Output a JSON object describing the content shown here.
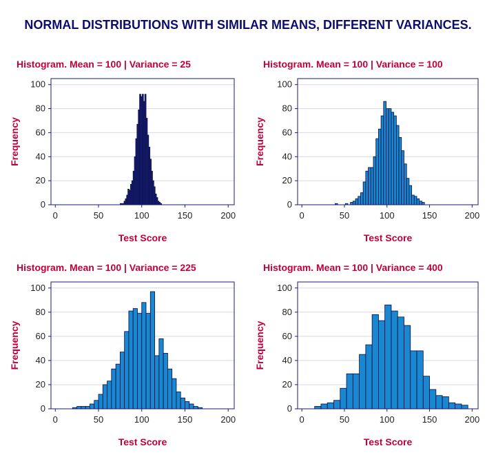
{
  "title": "NORMAL DISTRIBUTIONS WITH SIMILAR MEANS, DIFFERENT VARIANCES.",
  "colors": {
    "title": "#0c0c6e",
    "panel_title": "#c0003a",
    "frame": "#1a1a70",
    "grid": "#d8d8e8",
    "bar_dark": "#1a237e",
    "bar_light": "#1a88d0"
  },
  "chart_data": [
    {
      "type": "bar",
      "title": "Histogram. Mean = 100 | Variance = 25",
      "xlabel": "Test Score",
      "ylabel": "Frequency",
      "xlim": [
        -5,
        207
      ],
      "ylim": [
        0,
        105
      ],
      "xticks": [
        0,
        50,
        100,
        150,
        200
      ],
      "yticks": [
        0,
        20,
        40,
        60,
        80,
        100
      ],
      "bar_color": "#1a237e",
      "bin_width": 1.5,
      "bins": [
        {
          "x": 75,
          "y": 1
        },
        {
          "x": 76.5,
          "y": 1
        },
        {
          "x": 78,
          "y": 1
        },
        {
          "x": 79.5,
          "y": 3
        },
        {
          "x": 81,
          "y": 5
        },
        {
          "x": 82.5,
          "y": 8
        },
        {
          "x": 84,
          "y": 13
        },
        {
          "x": 85.5,
          "y": 12
        },
        {
          "x": 87,
          "y": 17
        },
        {
          "x": 88.5,
          "y": 20
        },
        {
          "x": 90,
          "y": 28
        },
        {
          "x": 91.5,
          "y": 40
        },
        {
          "x": 93,
          "y": 55
        },
        {
          "x": 94.5,
          "y": 67
        },
        {
          "x": 96,
          "y": 79
        },
        {
          "x": 97.5,
          "y": 92
        },
        {
          "x": 99,
          "y": 90
        },
        {
          "x": 100.5,
          "y": 92
        },
        {
          "x": 102,
          "y": 86
        },
        {
          "x": 103.5,
          "y": 92
        },
        {
          "x": 105,
          "y": 72
        },
        {
          "x": 106.5,
          "y": 58
        },
        {
          "x": 108,
          "y": 48
        },
        {
          "x": 109.5,
          "y": 38
        },
        {
          "x": 111,
          "y": 28
        },
        {
          "x": 112.5,
          "y": 20
        },
        {
          "x": 114,
          "y": 15
        },
        {
          "x": 115.5,
          "y": 9
        },
        {
          "x": 117,
          "y": 6
        },
        {
          "x": 118.5,
          "y": 3
        },
        {
          "x": 120,
          "y": 2
        },
        {
          "x": 121.5,
          "y": 1
        }
      ]
    },
    {
      "type": "bar",
      "title": "Histogram. Mean = 100 | Variance = 100",
      "xlabel": "Test Score",
      "ylabel": "Frequency",
      "xlim": [
        -5,
        207
      ],
      "ylim": [
        0,
        105
      ],
      "xticks": [
        0,
        50,
        100,
        150,
        200
      ],
      "yticks": [
        0,
        20,
        40,
        60,
        80,
        100
      ],
      "bar_color": "#1a88d0",
      "bin_width": 3,
      "bins": [
        {
          "x": 39,
          "y": 1
        },
        {
          "x": 51,
          "y": 1
        },
        {
          "x": 57,
          "y": 2
        },
        {
          "x": 60,
          "y": 3
        },
        {
          "x": 63,
          "y": 5
        },
        {
          "x": 66,
          "y": 7
        },
        {
          "x": 69,
          "y": 10
        },
        {
          "x": 72,
          "y": 19
        },
        {
          "x": 75,
          "y": 28
        },
        {
          "x": 78,
          "y": 31
        },
        {
          "x": 81,
          "y": 31
        },
        {
          "x": 84,
          "y": 40
        },
        {
          "x": 87,
          "y": 55
        },
        {
          "x": 90,
          "y": 63
        },
        {
          "x": 93,
          "y": 74
        },
        {
          "x": 96,
          "y": 86
        },
        {
          "x": 99,
          "y": 80
        },
        {
          "x": 102,
          "y": 80
        },
        {
          "x": 105,
          "y": 77
        },
        {
          "x": 108,
          "y": 74
        },
        {
          "x": 111,
          "y": 66
        },
        {
          "x": 114,
          "y": 56
        },
        {
          "x": 117,
          "y": 45
        },
        {
          "x": 120,
          "y": 34
        },
        {
          "x": 123,
          "y": 22
        },
        {
          "x": 126,
          "y": 16
        },
        {
          "x": 129,
          "y": 8
        },
        {
          "x": 132,
          "y": 7
        },
        {
          "x": 135,
          "y": 5
        },
        {
          "x": 138,
          "y": 3
        },
        {
          "x": 141,
          "y": 2
        }
      ]
    },
    {
      "type": "bar",
      "title": "Histogram. Mean = 100 | Variance = 225",
      "xlabel": "Test Score",
      "ylabel": "Frequency",
      "xlim": [
        -5,
        207
      ],
      "ylim": [
        0,
        105
      ],
      "xticks": [
        0,
        50,
        100,
        150,
        200
      ],
      "yticks": [
        0,
        20,
        40,
        60,
        80,
        100
      ],
      "bar_color": "#1a88d0",
      "bin_width": 5,
      "bins": [
        {
          "x": 20,
          "y": 1
        },
        {
          "x": 25,
          "y": 2
        },
        {
          "x": 30,
          "y": 2
        },
        {
          "x": 35,
          "y": 2
        },
        {
          "x": 40,
          "y": 4
        },
        {
          "x": 45,
          "y": 7
        },
        {
          "x": 50,
          "y": 12
        },
        {
          "x": 55,
          "y": 20
        },
        {
          "x": 60,
          "y": 23
        },
        {
          "x": 65,
          "y": 33
        },
        {
          "x": 70,
          "y": 37
        },
        {
          "x": 75,
          "y": 47
        },
        {
          "x": 80,
          "y": 64
        },
        {
          "x": 85,
          "y": 81
        },
        {
          "x": 90,
          "y": 83
        },
        {
          "x": 95,
          "y": 79
        },
        {
          "x": 100,
          "y": 88
        },
        {
          "x": 105,
          "y": 79
        },
        {
          "x": 110,
          "y": 97
        },
        {
          "x": 115,
          "y": 44
        },
        {
          "x": 120,
          "y": 58
        },
        {
          "x": 125,
          "y": 46
        },
        {
          "x": 130,
          "y": 33
        },
        {
          "x": 135,
          "y": 25
        },
        {
          "x": 140,
          "y": 14
        },
        {
          "x": 145,
          "y": 9
        },
        {
          "x": 150,
          "y": 6
        },
        {
          "x": 155,
          "y": 4
        },
        {
          "x": 160,
          "y": 2
        },
        {
          "x": 165,
          "y": 1
        }
      ]
    },
    {
      "type": "bar",
      "title": "Histogram. Mean = 100 | Variance = 400",
      "xlabel": "Test Score",
      "ylabel": "Frequency",
      "xlim": [
        -5,
        207
      ],
      "ylim": [
        0,
        105
      ],
      "xticks": [
        0,
        50,
        100,
        150,
        200
      ],
      "yticks": [
        0,
        20,
        40,
        60,
        80,
        100
      ],
      "bar_color": "#1a88d0",
      "bin_width": 7.5,
      "bins": [
        {
          "x": 15,
          "y": 2
        },
        {
          "x": 22.5,
          "y": 4
        },
        {
          "x": 30,
          "y": 5
        },
        {
          "x": 37.5,
          "y": 7
        },
        {
          "x": 45,
          "y": 17
        },
        {
          "x": 52.5,
          "y": 29
        },
        {
          "x": 60,
          "y": 29
        },
        {
          "x": 67.5,
          "y": 45
        },
        {
          "x": 75,
          "y": 53
        },
        {
          "x": 82.5,
          "y": 78
        },
        {
          "x": 90,
          "y": 73
        },
        {
          "x": 97.5,
          "y": 86
        },
        {
          "x": 105,
          "y": 81
        },
        {
          "x": 112.5,
          "y": 76
        },
        {
          "x": 120,
          "y": 69
        },
        {
          "x": 127.5,
          "y": 48
        },
        {
          "x": 135,
          "y": 48
        },
        {
          "x": 142.5,
          "y": 27
        },
        {
          "x": 150,
          "y": 16
        },
        {
          "x": 157.5,
          "y": 11
        },
        {
          "x": 165,
          "y": 10
        },
        {
          "x": 172.5,
          "y": 5
        },
        {
          "x": 180,
          "y": 4
        },
        {
          "x": 187.5,
          "y": 3
        }
      ]
    }
  ]
}
